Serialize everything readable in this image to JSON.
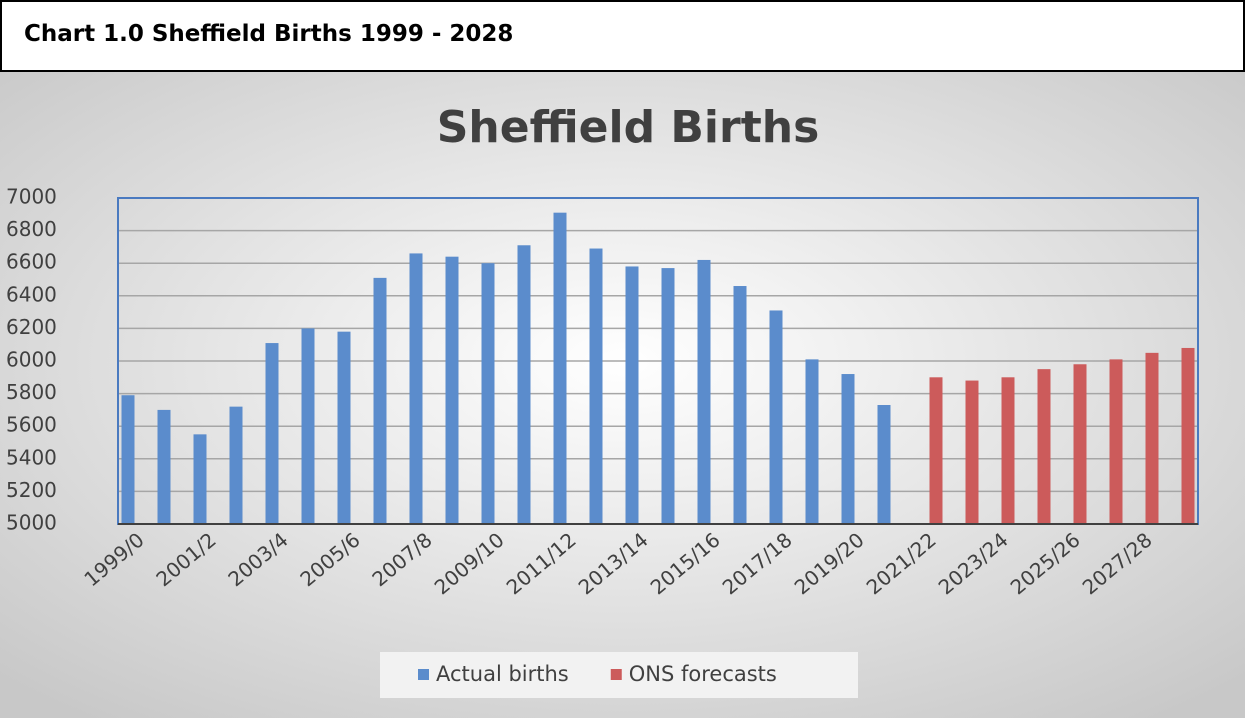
{
  "header": {
    "title": "Chart 1.0 Sheffield Births 1999 - 2028"
  },
  "chart_data": {
    "type": "bar",
    "title": "Sheffield Births",
    "categories": [
      "1999/0",
      null,
      "2001/2",
      null,
      "2003/4",
      null,
      "2005/6",
      null,
      "2007/8",
      null,
      "2009/10",
      null,
      "2011/12",
      null,
      "2013/14",
      null,
      "2015/16",
      null,
      "2017/18",
      null,
      "2019/20",
      null,
      "2021/22",
      null,
      "2023/24",
      null,
      "2025/26",
      null,
      "2027/28",
      null
    ],
    "series": [
      {
        "name": "Actual births",
        "color": "#5b8ccc",
        "values": [
          5790,
          5700,
          5550,
          5720,
          6110,
          6200,
          6180,
          6510,
          6660,
          6640,
          6600,
          6710,
          6910,
          6690,
          6580,
          6570,
          6620,
          6460,
          6310,
          6010,
          5920,
          5730,
          null,
          null,
          null,
          null,
          null,
          null,
          null,
          null
        ]
      },
      {
        "name": "ONS forecasts",
        "color": "#cc5b5b",
        "values": [
          null,
          null,
          null,
          null,
          null,
          null,
          null,
          null,
          null,
          null,
          null,
          null,
          null,
          null,
          null,
          null,
          null,
          null,
          null,
          null,
          null,
          null,
          5900,
          5880,
          5900,
          5950,
          5980,
          6010,
          6050,
          6080
        ]
      }
    ],
    "ylim": [
      5000,
      7000
    ],
    "yticks": [
      5000,
      5200,
      5400,
      5600,
      5800,
      6000,
      6200,
      6400,
      6600,
      6800,
      7000
    ],
    "grid": true,
    "legend": "bottom"
  }
}
